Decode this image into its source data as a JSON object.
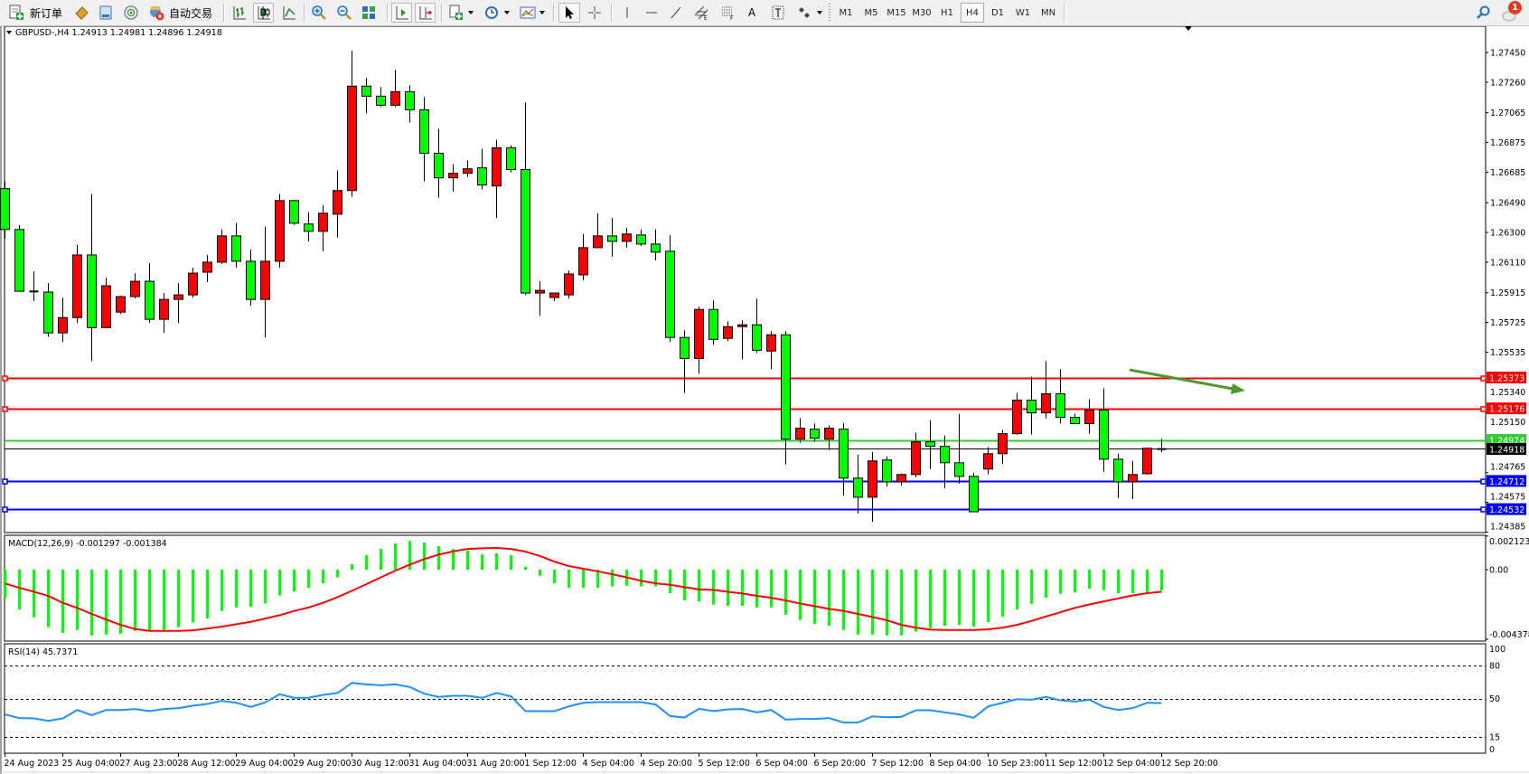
{
  "toolbar": {
    "new_order_label": "新订单",
    "auto_trading_label": "自动交易",
    "timeframes": [
      "M1",
      "M5",
      "M15",
      "M30",
      "H1",
      "H4",
      "D1",
      "W1",
      "MN"
    ],
    "active_timeframe": "H4",
    "text_tool_label": "A",
    "notification_count": "1"
  },
  "chart": {
    "header_label": "GBPUSD-,H4  1.24913 1.24981 1.24896 1.24918",
    "macd_label": "MACD(12,26,9) -0.001297 -0.001384",
    "rsi_label": "RSI(14) 45.7371",
    "bull_color": "#ff0000",
    "bear_color": "#00ff00",
    "bid_price": "1.24918",
    "levels": [
      {
        "price": "1.25373",
        "color": "#ff0000"
      },
      {
        "price": "1.25176",
        "color": "#ff0000"
      },
      {
        "price": "1.24974",
        "color": "#32cd32"
      },
      {
        "price": "1.24712",
        "color": "#0000ff"
      },
      {
        "price": "1.24532",
        "color": "#0000ff"
      }
    ],
    "trend_arrow_color": "#4e9a2e"
  },
  "chart_data": {
    "type": "candlestick",
    "price_ylim": [
      1.24382,
      1.27618
    ],
    "price_ticks": [
      "1.27450",
      "1.27260",
      "1.27065",
      "1.26875",
      "1.26685",
      "1.26490",
      "1.26300",
      "1.26110",
      "1.25915",
      "1.25725",
      "1.25535",
      "1.25340",
      "1.25150",
      "1.24765",
      "1.24575",
      "1.24385"
    ],
    "time_labels": [
      "24 Aug 2023",
      "25 Aug 04:00",
      "27 Aug 23:00",
      "28 Aug 12:00",
      "29 Aug 04:00",
      "29 Aug 20:00",
      "30 Aug 12:00",
      "31 Aug 04:00",
      "31 Aug 20:00",
      "1 Sep 12:00",
      "4 Sep 04:00",
      "4 Sep 20:00",
      "5 Sep 12:00",
      "6 Sep 04:00",
      "6 Sep 20:00",
      "7 Sep 12:00",
      "8 Sep 04:00",
      "10 Sep 23:00",
      "11 Sep 12:00",
      "12 Sep 04:00",
      "12 Sep 20:00"
    ],
    "ohlc": [
      [
        1.2658,
        1.26626,
        1.26261,
        1.26319
      ],
      [
        1.26319,
        1.26348,
        1.25924,
        1.25924
      ],
      [
        1.25924,
        1.26052,
        1.25861,
        1.25922
      ],
      [
        1.25919,
        1.25977,
        1.25634,
        1.25658
      ],
      [
        1.25658,
        1.25884,
        1.256,
        1.25756
      ],
      [
        1.25756,
        1.2622,
        1.25721,
        1.26156
      ],
      [
        1.26156,
        1.26545,
        1.25478,
        1.25692
      ],
      [
        1.25692,
        1.26011,
        1.2569,
        1.25959
      ],
      [
        1.25791,
        1.25895,
        1.25779,
        1.2589
      ],
      [
        1.2589,
        1.2604,
        1.25878,
        1.25988
      ],
      [
        1.25988,
        1.26104,
        1.25721,
        1.25745
      ],
      [
        1.25745,
        1.25913,
        1.25658,
        1.25872
      ],
      [
        1.25872,
        1.25977,
        1.25721,
        1.25901
      ],
      [
        1.25901,
        1.26075,
        1.25884,
        1.2604
      ],
      [
        1.26046,
        1.26156,
        1.25982,
        1.2611
      ],
      [
        1.2611,
        1.26319,
        1.26098,
        1.26278
      ],
      [
        1.26278,
        1.26359,
        1.26075,
        1.26116
      ],
      [
        1.26116,
        1.26191,
        1.25832,
        1.25872
      ],
      [
        1.25872,
        1.26336,
        1.25629,
        1.26116
      ],
      [
        1.26116,
        1.26545,
        1.26075,
        1.26504
      ],
      [
        1.26504,
        1.26506,
        1.26348,
        1.26359
      ],
      [
        1.26354,
        1.26429,
        1.26243,
        1.26307
      ],
      [
        1.26307,
        1.26475,
        1.2618,
        1.26423
      ],
      [
        1.26417,
        1.26696,
        1.26267,
        1.26568
      ],
      [
        1.26568,
        1.27461,
        1.26528,
        1.27235
      ],
      [
        1.27235,
        1.27287,
        1.27061,
        1.27171
      ],
      [
        1.27171,
        1.27229,
        1.27102,
        1.27113
      ],
      [
        1.27113,
        1.2734,
        1.27102,
        1.272
      ],
      [
        1.272,
        1.27241,
        1.27003,
        1.27084
      ],
      [
        1.27084,
        1.27166,
        1.26626,
        1.26806
      ],
      [
        1.26806,
        1.26963,
        1.26522,
        1.26649
      ],
      [
        1.26649,
        1.26736,
        1.26562,
        1.26678
      ],
      [
        1.26678,
        1.2676,
        1.26655,
        1.26707
      ],
      [
        1.26713,
        1.26835,
        1.26574,
        1.26603
      ],
      [
        1.26597,
        1.26893,
        1.26394,
        1.26841
      ],
      [
        1.26841,
        1.26858,
        1.26684,
        1.26702
      ],
      [
        1.26702,
        1.27131,
        1.25901,
        1.25913
      ],
      [
        1.25913,
        1.25988,
        1.25768,
        1.2593
      ],
      [
        1.25884,
        1.25913,
        1.25861,
        1.25913
      ],
      [
        1.25901,
        1.26058,
        1.25878,
        1.26035
      ],
      [
        1.26029,
        1.2629,
        1.25994,
        1.26203
      ],
      [
        1.26203,
        1.26423,
        1.262,
        1.26278
      ],
      [
        1.26278,
        1.26394,
        1.26145,
        1.26243
      ],
      [
        1.26243,
        1.2633,
        1.26203,
        1.2629
      ],
      [
        1.26284,
        1.26319,
        1.26214,
        1.26226
      ],
      [
        1.26226,
        1.26319,
        1.26122,
        1.26174
      ],
      [
        1.2618,
        1.26284,
        1.256,
        1.25629
      ],
      [
        1.25629,
        1.25675,
        1.25275,
        1.25495
      ],
      [
        1.25495,
        1.25826,
        1.25397,
        1.25808
      ],
      [
        1.25808,
        1.25866,
        1.25582,
        1.25617
      ],
      [
        1.25623,
        1.25733,
        1.25606,
        1.25698
      ],
      [
        1.25698,
        1.25739,
        1.25489,
        1.2571
      ],
      [
        1.2571,
        1.25878,
        1.2553,
        1.25547
      ],
      [
        1.25542,
        1.25669,
        1.25426,
        1.25646
      ],
      [
        1.25646,
        1.25669,
        1.24817,
        1.24979
      ],
      [
        1.24979,
        1.25112,
        1.24956,
        1.25049
      ],
      [
        1.25043,
        1.25078,
        1.24962,
        1.24985
      ],
      [
        1.24979,
        1.25066,
        1.24909,
        1.25049
      ],
      [
        1.25043,
        1.25083,
        1.24619,
        1.2473
      ],
      [
        1.2473,
        1.2488,
        1.24503,
        1.24608
      ],
      [
        1.24608,
        1.24898,
        1.24451,
        1.2484
      ],
      [
        1.24846,
        1.24869,
        1.24677,
        1.24706
      ],
      [
        1.24706,
        1.2476,
        1.24683,
        1.24753
      ],
      [
        1.24753,
        1.2502,
        1.24735,
        1.24962
      ],
      [
        1.24962,
        1.25101,
        1.24788,
        1.24933
      ],
      [
        1.24933,
        1.25002,
        1.24666,
        1.24828
      ],
      [
        1.24828,
        1.25141,
        1.24695,
        1.24741
      ],
      [
        1.24741,
        1.24764,
        1.24515,
        1.24515
      ],
      [
        1.24788,
        1.24927,
        1.24753,
        1.24886
      ],
      [
        1.24886,
        1.25037,
        1.24822,
        1.25014
      ],
      [
        1.25014,
        1.25275,
        1.25008,
        1.25228
      ],
      [
        1.25228,
        1.25379,
        1.25008,
        1.25147
      ],
      [
        1.25147,
        1.25478,
        1.25112,
        1.25269
      ],
      [
        1.25269,
        1.25426,
        1.25078,
        1.25118
      ],
      [
        1.25118,
        1.25141,
        1.25078,
        1.25078
      ],
      [
        1.25078,
        1.25234,
        1.25014,
        1.25165
      ],
      [
        1.25165,
        1.25304,
        1.2477,
        1.24851
      ],
      [
        1.24851,
        1.24886,
        1.24602,
        1.24706
      ],
      [
        1.24706,
        1.2484,
        1.24596,
        1.24753
      ],
      [
        1.24758,
        1.24925,
        1.24753,
        1.24921
      ],
      [
        1.24913,
        1.24981,
        1.24896,
        1.24918
      ]
    ],
    "macd": {
      "ylim": [
        -0.0045,
        0.00217
      ],
      "ticks": [
        "0.002123",
        "0.00",
        "-0.004378"
      ],
      "histogram": [
        -0.00181,
        -0.00251,
        -0.003,
        -0.00363,
        -0.00399,
        -0.0038,
        -0.00414,
        -0.00409,
        -0.00403,
        -0.00386,
        -0.0038,
        -0.0038,
        -0.00363,
        -0.00333,
        -0.00308,
        -0.0026,
        -0.00238,
        -0.00234,
        -0.00213,
        -0.00162,
        -0.00137,
        -0.00114,
        -0.00086,
        -0.00048,
        0.00034,
        0.00091,
        0.00131,
        0.00165,
        0.00181,
        0.00171,
        0.00148,
        0.00131,
        0.0012,
        0.00097,
        0.00103,
        0.00091,
        0.00019,
        -0.00038,
        -0.00086,
        -0.00114,
        -0.00114,
        -0.00114,
        -0.00106,
        -0.00101,
        -0.00105,
        -0.00105,
        -0.00148,
        -0.00194,
        -0.002,
        -0.0022,
        -0.00228,
        -0.00228,
        -0.00238,
        -0.00238,
        -0.00283,
        -0.00317,
        -0.00342,
        -0.00353,
        -0.0038,
        -0.00409,
        -0.00409,
        -0.00414,
        -0.00414,
        -0.0039,
        -0.00369,
        -0.00353,
        -0.00348,
        -0.00359,
        -0.00331,
        -0.00296,
        -0.00251,
        -0.00215,
        -0.00177,
        -0.00152,
        -0.00143,
        -0.0012,
        -0.00129,
        -0.00148,
        -0.00148,
        -0.00143,
        -0.001297
      ],
      "signal": [
        -0.00087,
        -0.00114,
        -0.00139,
        -0.00165,
        -0.00209,
        -0.00241,
        -0.00279,
        -0.00314,
        -0.00348,
        -0.00374,
        -0.00386,
        -0.00386,
        -0.00386,
        -0.00382,
        -0.00371,
        -0.00359,
        -0.00344,
        -0.00329,
        -0.00308,
        -0.00287,
        -0.0026,
        -0.00238,
        -0.00209,
        -0.00173,
        -0.00133,
        -0.00091,
        -0.00048,
        -6e-05,
        0.00032,
        0.00067,
        0.00095,
        0.00116,
        0.00131,
        0.00135,
        0.00137,
        0.00131,
        0.00114,
        0.00086,
        0.00051,
        0.00023,
        6e-05,
        -0.0001,
        -0.00029,
        -0.00048,
        -0.0007,
        -0.00086,
        -0.00095,
        -0.0011,
        -0.00124,
        -0.00127,
        -0.00139,
        -0.0015,
        -0.00165,
        -0.00177,
        -0.00194,
        -0.00213,
        -0.0023,
        -0.00247,
        -0.0026,
        -0.00279,
        -0.00298,
        -0.00319,
        -0.00348,
        -0.00365,
        -0.00378,
        -0.0038,
        -0.0038,
        -0.0038,
        -0.00376,
        -0.00365,
        -0.00348,
        -0.00323,
        -0.00295,
        -0.00268,
        -0.00241,
        -0.00219,
        -0.002,
        -0.00181,
        -0.00162,
        -0.00148,
        -0.001384
      ],
      "histogram_color": "#00ff00",
      "signal_color": "#ff0000"
    },
    "rsi": {
      "ylim": [
        0,
        100
      ],
      "ticks": [
        "100",
        "80",
        "50",
        "15",
        "0"
      ],
      "levels": [
        80,
        50,
        15
      ],
      "color": "#1e90ff",
      "values": [
        35.4,
        32.1,
        31.8,
        29.6,
        31.8,
        39.5,
        34.8,
        39.5,
        39.5,
        40.4,
        38.4,
        40.4,
        41.2,
        43.4,
        45.0,
        47.8,
        46.1,
        42.3,
        46.4,
        53.9,
        50.6,
        50.6,
        53.3,
        55.0,
        64.3,
        62.9,
        62.1,
        62.9,
        60.5,
        54.4,
        51.4,
        52.5,
        52.5,
        50.6,
        55.0,
        51.9,
        38.4,
        38.4,
        38.4,
        42.8,
        46.1,
        46.7,
        46.7,
        46.7,
        46.7,
        44.5,
        34.0,
        32.6,
        40.6,
        38.4,
        40.1,
        40.4,
        37.3,
        39.5,
        30.7,
        31.3,
        31.3,
        32.1,
        28.0,
        28.0,
        33.7,
        32.9,
        33.2,
        39.3,
        39.3,
        37.3,
        35.4,
        32.4,
        42.8,
        46.1,
        49.4,
        48.9,
        51.4,
        48.3,
        47.2,
        48.9,
        42.3,
        39.5,
        41.2,
        46.1,
        45.7371
      ]
    }
  }
}
